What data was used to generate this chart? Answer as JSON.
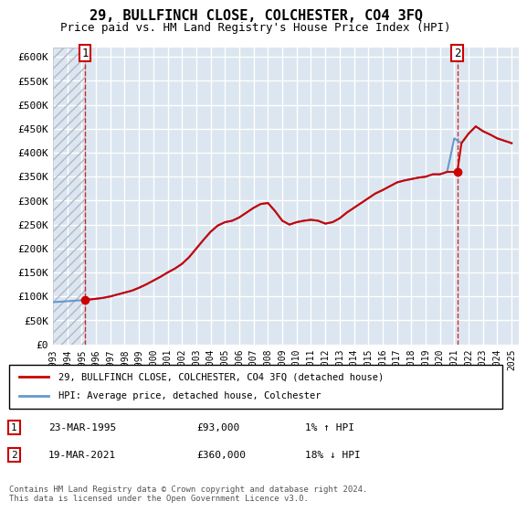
{
  "title": "29, BULLFINCH CLOSE, COLCHESTER, CO4 3FQ",
  "subtitle": "Price paid vs. HM Land Registry's House Price Index (HPI)",
  "ylim": [
    0,
    620000
  ],
  "yticks": [
    0,
    50000,
    100000,
    150000,
    200000,
    250000,
    300000,
    350000,
    400000,
    450000,
    500000,
    550000,
    600000
  ],
  "ytick_labels": [
    "£0",
    "£50K",
    "£100K",
    "£150K",
    "£200K",
    "£250K",
    "£300K",
    "£350K",
    "£400K",
    "£450K",
    "£500K",
    "£550K",
    "£600K"
  ],
  "xlim_start": 1993.0,
  "xlim_end": 2025.5,
  "hatch_end": 1995.2,
  "bg_color": "#dce6f0",
  "plot_bg_color": "#dce6f0",
  "hatch_color": "#b0b8c8",
  "grid_color": "#ffffff",
  "red_color": "#cc0000",
  "blue_color": "#6699cc",
  "point1_x": 1995.22,
  "point1_y": 93000,
  "point2_x": 2021.21,
  "point2_y": 360000,
  "legend_line1": "29, BULLFINCH CLOSE, COLCHESTER, CO4 3FQ (detached house)",
  "legend_line2": "HPI: Average price, detached house, Colchester",
  "table_row1": [
    "1",
    "23-MAR-1995",
    "£93,000",
    "1% ↑ HPI"
  ],
  "table_row2": [
    "2",
    "19-MAR-2021",
    "£360,000",
    "18% ↓ HPI"
  ],
  "copyright": "Contains HM Land Registry data © Crown copyright and database right 2024.\nThis data is licensed under the Open Government Licence v3.0.",
  "hpi_years": [
    1993,
    1993.5,
    1994,
    1994.5,
    1995,
    1995.5,
    1996,
    1996.5,
    1997,
    1997.5,
    1998,
    1998.5,
    1999,
    1999.5,
    2000,
    2000.5,
    2001,
    2001.5,
    2002,
    2002.5,
    2003,
    2003.5,
    2004,
    2004.5,
    2005,
    2005.5,
    2006,
    2006.5,
    2007,
    2007.5,
    2008,
    2008.5,
    2009,
    2009.5,
    2010,
    2010.5,
    2011,
    2011.5,
    2012,
    2012.5,
    2013,
    2013.5,
    2014,
    2014.5,
    2015,
    2015.5,
    2016,
    2016.5,
    2017,
    2017.5,
    2018,
    2018.5,
    2019,
    2019.5,
    2020,
    2020.5,
    2021,
    2021.5,
    2022,
    2022.5,
    2023,
    2023.5,
    2024,
    2024.5,
    2025
  ],
  "hpi_values": [
    88000,
    89000,
    90000,
    91000,
    92000,
    93500,
    95000,
    97000,
    100000,
    104000,
    108000,
    112000,
    118000,
    125000,
    133000,
    141000,
    150000,
    158000,
    168000,
    182000,
    200000,
    218000,
    235000,
    248000,
    255000,
    258000,
    265000,
    275000,
    285000,
    293000,
    295000,
    278000,
    258000,
    250000,
    255000,
    258000,
    260000,
    258000,
    252000,
    255000,
    263000,
    275000,
    285000,
    295000,
    305000,
    315000,
    322000,
    330000,
    338000,
    342000,
    345000,
    348000,
    350000,
    355000,
    355000,
    360000,
    430000,
    420000,
    440000,
    455000,
    445000,
    438000,
    430000,
    425000,
    420000
  ],
  "prop_years": [
    1993,
    1993.5,
    1994,
    1994.5,
    1995.22,
    1995.5,
    1996,
    1996.5,
    1997,
    1997.5,
    1998,
    1998.5,
    1999,
    1999.5,
    2000,
    2000.5,
    2001,
    2001.5,
    2002,
    2002.5,
    2003,
    2003.5,
    2004,
    2004.5,
    2005,
    2005.5,
    2006,
    2006.5,
    2007,
    2007.5,
    2008,
    2008.5,
    2009,
    2009.5,
    2010,
    2010.5,
    2011,
    2011.5,
    2012,
    2012.5,
    2013,
    2013.5,
    2014,
    2014.5,
    2015,
    2015.5,
    2016,
    2016.5,
    2017,
    2017.5,
    2018,
    2018.5,
    2019,
    2019.5,
    2020,
    2020.5,
    2021.21,
    2021.5,
    2022,
    2022.5,
    2023,
    2023.5,
    2024,
    2024.5,
    2025
  ],
  "prop_values": [
    null,
    null,
    null,
    null,
    93000,
    93500,
    95000,
    97000,
    100000,
    104000,
    108000,
    112000,
    118000,
    125000,
    133000,
    141000,
    150000,
    158000,
    168000,
    182000,
    200000,
    218000,
    235000,
    248000,
    255000,
    258000,
    265000,
    275000,
    285000,
    293000,
    295000,
    278000,
    258000,
    250000,
    255000,
    258000,
    260000,
    258000,
    252000,
    255000,
    263000,
    275000,
    285000,
    295000,
    305000,
    315000,
    322000,
    330000,
    338000,
    342000,
    345000,
    348000,
    350000,
    355000,
    355000,
    360000,
    360000,
    420000,
    440000,
    455000,
    445000,
    438000,
    430000,
    425000,
    420000
  ]
}
